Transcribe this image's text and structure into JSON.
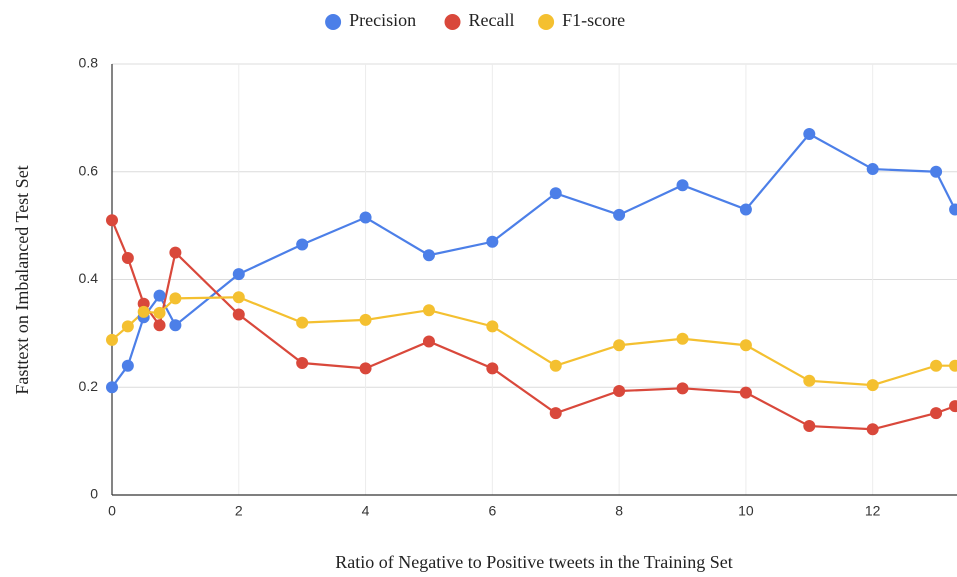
{
  "chart_data": {
    "type": "line",
    "x_label": "Ratio of Negative to Positive tweets in the Training Set",
    "y_label": "Fasttext on Imbalanced Test Set",
    "x": [
      0,
      0.25,
      0.5,
      0.75,
      1,
      2,
      3,
      4,
      5,
      6,
      7,
      8,
      9,
      10,
      11,
      12,
      13,
      13.3
    ],
    "series": [
      {
        "name": "Precision",
        "color": "#4c7fe8",
        "values": [
          0.2,
          0.24,
          0.33,
          0.37,
          0.315,
          0.41,
          0.465,
          0.515,
          0.445,
          0.47,
          0.56,
          0.52,
          0.575,
          0.53,
          0.67,
          0.605,
          0.6,
          0.53
        ]
      },
      {
        "name": "Recall",
        "color": "#d9483b",
        "values": [
          0.51,
          0.44,
          0.355,
          0.315,
          0.45,
          0.335,
          0.245,
          0.235,
          0.285,
          0.235,
          0.152,
          0.193,
          0.198,
          0.19,
          0.128,
          0.122,
          0.152,
          0.165
        ]
      },
      {
        "name": "F1-score",
        "color": "#f4c030",
        "values": [
          0.288,
          0.313,
          0.34,
          0.338,
          0.365,
          0.367,
          0.32,
          0.325,
          0.343,
          0.313,
          0.24,
          0.278,
          0.29,
          0.278,
          0.212,
          0.204,
          0.24,
          0.24
        ]
      }
    ],
    "xlim": [
      0,
      13.33
    ],
    "ylim": [
      0,
      0.8
    ],
    "xticks": [
      0,
      2,
      4,
      6,
      8,
      10,
      12
    ],
    "yticks": [
      0,
      0.2,
      0.4,
      0.6,
      0.8
    ],
    "grid": true,
    "legend": "top"
  }
}
